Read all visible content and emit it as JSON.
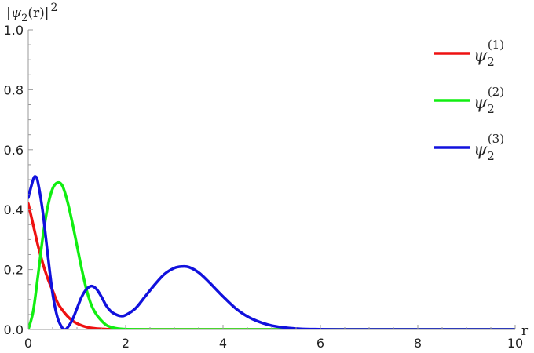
{
  "chart_data": {
    "type": "line",
    "title": "",
    "xlabel": "r",
    "ylabel": "|ψ2(r)|²",
    "ylabel_parts": {
      "open": "|",
      "psi": "ψ",
      "sub": "2",
      "arg": "(r)|",
      "sup": "2"
    },
    "xlim": [
      0,
      10
    ],
    "ylim": [
      0,
      1.0
    ],
    "x_ticks": [
      0,
      2,
      4,
      6,
      8,
      10
    ],
    "x_tick_labels": [
      "0",
      "2",
      "4",
      "6",
      "8",
      "10"
    ],
    "y_ticks": [
      0,
      0.2,
      0.4,
      0.6,
      0.8,
      1.0
    ],
    "y_tick_labels": [
      "0.0",
      "0.2",
      "0.4",
      "0.6",
      "0.8",
      "1.0"
    ],
    "grid": false,
    "legend_position": "right",
    "series": [
      {
        "name": "ψ2(1)",
        "label_base": "ψ",
        "label_sub": "2",
        "label_sup": "(1)",
        "color": "#ee1111",
        "x": [
          0,
          0.1,
          0.2,
          0.3,
          0.4,
          0.5,
          0.6,
          0.7,
          0.8,
          0.9,
          1.0,
          1.1,
          1.2,
          1.3,
          1.4,
          1.5,
          1.6,
          1.7,
          1.8,
          1.9,
          2.0,
          2.5,
          3,
          4,
          5,
          6,
          7,
          8,
          9,
          10
        ],
        "y": [
          0.42,
          0.35,
          0.28,
          0.22,
          0.17,
          0.13,
          0.09,
          0.065,
          0.045,
          0.03,
          0.02,
          0.013,
          0.008,
          0.005,
          0.003,
          0.002,
          0.001,
          0.0005,
          0.0002,
          0.0001,
          0,
          0,
          0,
          0,
          0,
          0,
          0,
          0,
          0,
          0
        ]
      },
      {
        "name": "ψ2(2)",
        "label_base": "ψ",
        "label_sub": "2",
        "label_sup": "(2)",
        "color": "#11ee11",
        "x": [
          0,
          0.1,
          0.2,
          0.3,
          0.4,
          0.5,
          0.6,
          0.7,
          0.8,
          0.9,
          1.0,
          1.1,
          1.2,
          1.3,
          1.4,
          1.5,
          1.6,
          1.7,
          1.8,
          1.9,
          2.0,
          2.2,
          2.5,
          3,
          4,
          5,
          6,
          7,
          8,
          9,
          10
        ],
        "y": [
          0,
          0.06,
          0.18,
          0.31,
          0.41,
          0.47,
          0.49,
          0.48,
          0.43,
          0.36,
          0.28,
          0.2,
          0.13,
          0.08,
          0.05,
          0.03,
          0.015,
          0.008,
          0.004,
          0.002,
          0.001,
          0.0003,
          0,
          0,
          0,
          0,
          0,
          0,
          0,
          0,
          0
        ]
      },
      {
        "name": "ψ2(3)",
        "label_base": "ψ",
        "label_sub": "2",
        "label_sup": "(3)",
        "color": "#1111dd",
        "x": [
          0,
          0.1,
          0.15,
          0.2,
          0.3,
          0.4,
          0.5,
          0.6,
          0.7,
          0.75,
          0.8,
          0.9,
          1.0,
          1.1,
          1.2,
          1.3,
          1.4,
          1.5,
          1.6,
          1.7,
          1.8,
          1.9,
          2.0,
          2.2,
          2.4,
          2.6,
          2.8,
          3.0,
          3.15,
          3.3,
          3.5,
          3.7,
          4.0,
          4.3,
          4.6,
          5.0,
          5.5,
          6.0,
          6.5,
          7,
          8,
          9,
          10
        ],
        "y": [
          0.44,
          0.5,
          0.51,
          0.49,
          0.39,
          0.25,
          0.12,
          0.04,
          0.005,
          0,
          0.005,
          0.03,
          0.07,
          0.11,
          0.135,
          0.145,
          0.135,
          0.11,
          0.08,
          0.06,
          0.05,
          0.045,
          0.048,
          0.07,
          0.11,
          0.15,
          0.185,
          0.205,
          0.21,
          0.208,
          0.19,
          0.16,
          0.11,
          0.065,
          0.035,
          0.013,
          0.003,
          0.0006,
          0.0001,
          0,
          0,
          0,
          0
        ]
      }
    ]
  }
}
